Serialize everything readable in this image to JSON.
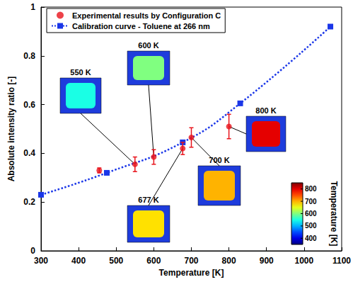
{
  "chart_data": {
    "type": "scatter",
    "x_label": "Temperature [K]",
    "y_label": "Absolute intensity ratio [-]",
    "xlim": [
      300,
      1100
    ],
    "xticks": [
      300,
      400,
      500,
      600,
      700,
      800,
      900,
      1000,
      1100
    ],
    "ylim": [
      0,
      1
    ],
    "yticks": [
      0,
      0.2,
      0.4,
      0.6,
      0.8,
      1
    ],
    "grid": false,
    "legend": "upper left",
    "series": [
      {
        "name": "Experimental results by Configuration C",
        "type": "scatter",
        "color": "#e8131b",
        "marker": "circle",
        "x": [
          455,
          550,
          600,
          677,
          700,
          800
        ],
        "values": [
          0.33,
          0.355,
          0.385,
          0.42,
          0.465,
          0.51
        ],
        "errors": [
          0.01,
          0.03,
          0.03,
          0.025,
          0.04,
          0.05
        ]
      },
      {
        "name": "Calibration curve - Toluene at 266 nm",
        "type": "line",
        "color": "#1a36e8",
        "marker": "square",
        "line_style": "dotted",
        "x": [
          300,
          475,
          677,
          830,
          1070
        ],
        "values": [
          0.23,
          0.32,
          0.445,
          0.605,
          0.92
        ]
      }
    ],
    "insets": [
      {
        "label": "550 K",
        "temperature": 550
      },
      {
        "label": "600 K",
        "temperature": 600
      },
      {
        "label": "677 K",
        "temperature": 677
      },
      {
        "label": "700 K",
        "temperature": 700
      },
      {
        "label": "800 K",
        "temperature": 800
      }
    ],
    "colorbar": {
      "label": "Temperature [K]",
      "range": [
        350,
        850
      ],
      "ticks": [
        400,
        500,
        600,
        700,
        800
      ]
    }
  }
}
